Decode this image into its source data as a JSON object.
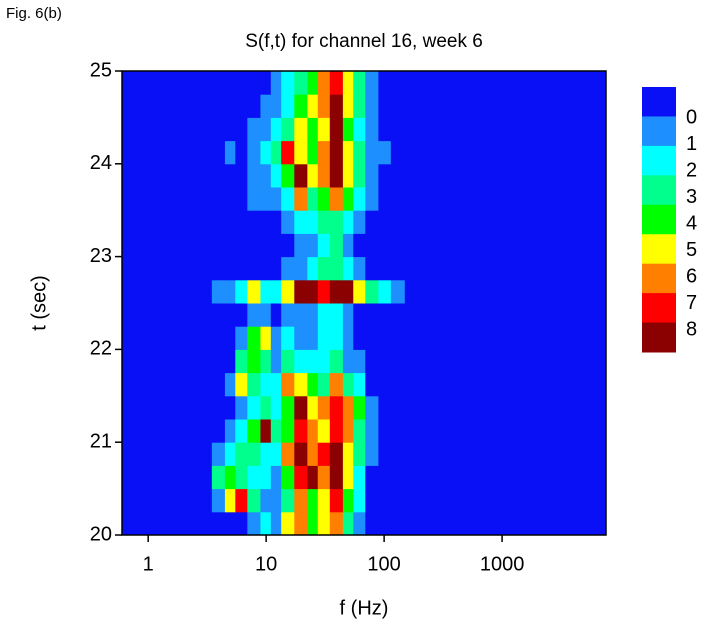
{
  "chart_data": {
    "type": "heatmap",
    "figure_label": "Fig. 6(b)",
    "title": "S(f,t) for channel 16, week 6",
    "x_label": "f (Hz)",
    "y_label": "t (sec)",
    "log_x": true,
    "xlim": [
      0.6,
      7600
    ],
    "ylim": [
      20,
      25
    ],
    "xticks": [
      1,
      10,
      100,
      1000
    ],
    "yticks": [
      20,
      21,
      22,
      23,
      24,
      25
    ],
    "x": [
      2,
      3,
      4,
      5,
      6,
      8,
      10,
      12,
      15,
      20,
      25,
      30,
      40,
      50,
      60,
      80,
      100,
      130
    ],
    "y": [
      20.125,
      20.375,
      20.625,
      20.875,
      21.125,
      21.375,
      21.625,
      21.875,
      22.125,
      22.375,
      22.625,
      22.875,
      23.125,
      23.375,
      23.625,
      23.875,
      24.125,
      24.375,
      24.625,
      24.875
    ],
    "z": [
      [
        0,
        0,
        0,
        0,
        0,
        1,
        2,
        1,
        5,
        6,
        4,
        5,
        6,
        3,
        1,
        0,
        0,
        0
      ],
      [
        0,
        0,
        1,
        5,
        7,
        3,
        1,
        1,
        3,
        6,
        4,
        5,
        7,
        4,
        2,
        0,
        0,
        0
      ],
      [
        0,
        0,
        3,
        4,
        3,
        2,
        2,
        1,
        4,
        7,
        8,
        6,
        8,
        5,
        2,
        0,
        0,
        0
      ],
      [
        0,
        0,
        1,
        2,
        3,
        3,
        2,
        2,
        6,
        8,
        6,
        7,
        8,
        5,
        3,
        1,
        0,
        0
      ],
      [
        0,
        0,
        0,
        1,
        2,
        4,
        8,
        3,
        4,
        7,
        6,
        5,
        7,
        6,
        3,
        1,
        0,
        0
      ],
      [
        0,
        0,
        0,
        0,
        1,
        2,
        3,
        2,
        4,
        8,
        5,
        6,
        7,
        6,
        4,
        1,
        0,
        0
      ],
      [
        0,
        0,
        0,
        1,
        5,
        3,
        2,
        2,
        6,
        5,
        4,
        3,
        6,
        3,
        2,
        0,
        0,
        0
      ],
      [
        0,
        0,
        0,
        0,
        3,
        4,
        3,
        1,
        3,
        2,
        2,
        2,
        3,
        1,
        1,
        0,
        0,
        0
      ],
      [
        0,
        0,
        0,
        0,
        1,
        4,
        5,
        1,
        2,
        1,
        1,
        2,
        2,
        1,
        0,
        0,
        0,
        0
      ],
      [
        0,
        0,
        0,
        0,
        0,
        1,
        1,
        0,
        1,
        1,
        1,
        2,
        2,
        1,
        0,
        0,
        0,
        0
      ],
      [
        0,
        0,
        1,
        1,
        2,
        5,
        2,
        2,
        5,
        8,
        8,
        7,
        8,
        8,
        5,
        3,
        2,
        1
      ],
      [
        0,
        0,
        0,
        0,
        0,
        0,
        0,
        0,
        1,
        1,
        2,
        3,
        3,
        2,
        1,
        0,
        0,
        0
      ],
      [
        0,
        0,
        0,
        0,
        0,
        0,
        0,
        0,
        0,
        1,
        1,
        2,
        3,
        1,
        0,
        0,
        0,
        0
      ],
      [
        0,
        0,
        0,
        0,
        0,
        0,
        0,
        0,
        1,
        2,
        2,
        3,
        3,
        2,
        1,
        0,
        0,
        0
      ],
      [
        0,
        0,
        0,
        0,
        0,
        1,
        1,
        1,
        2,
        6,
        3,
        4,
        6,
        4,
        2,
        1,
        0,
        0
      ],
      [
        0,
        0,
        0,
        0,
        0,
        1,
        1,
        2,
        4,
        8,
        5,
        6,
        8,
        5,
        3,
        1,
        0,
        0
      ],
      [
        0,
        0,
        0,
        1,
        0,
        1,
        2,
        3,
        7,
        5,
        4,
        6,
        8,
        5,
        3,
        1,
        1,
        0
      ],
      [
        0,
        0,
        0,
        0,
        0,
        1,
        1,
        2,
        3,
        5,
        4,
        5,
        8,
        4,
        2,
        1,
        0,
        0
      ],
      [
        0,
        0,
        0,
        0,
        0,
        0,
        1,
        1,
        2,
        4,
        5,
        6,
        8,
        5,
        3,
        1,
        0,
        0
      ],
      [
        0,
        0,
        0,
        0,
        0,
        0,
        0,
        1,
        2,
        3,
        4,
        6,
        7,
        5,
        3,
        1,
        0,
        0
      ]
    ],
    "levels": [
      0,
      1,
      2,
      3,
      4,
      5,
      6,
      7,
      8
    ],
    "colors": [
      "#0a10f5",
      "#1e8fff",
      "#00ffff",
      "#00ff8c",
      "#00ff00",
      "#ffff00",
      "#ff8000",
      "#ff0000",
      "#8b0000"
    ]
  }
}
